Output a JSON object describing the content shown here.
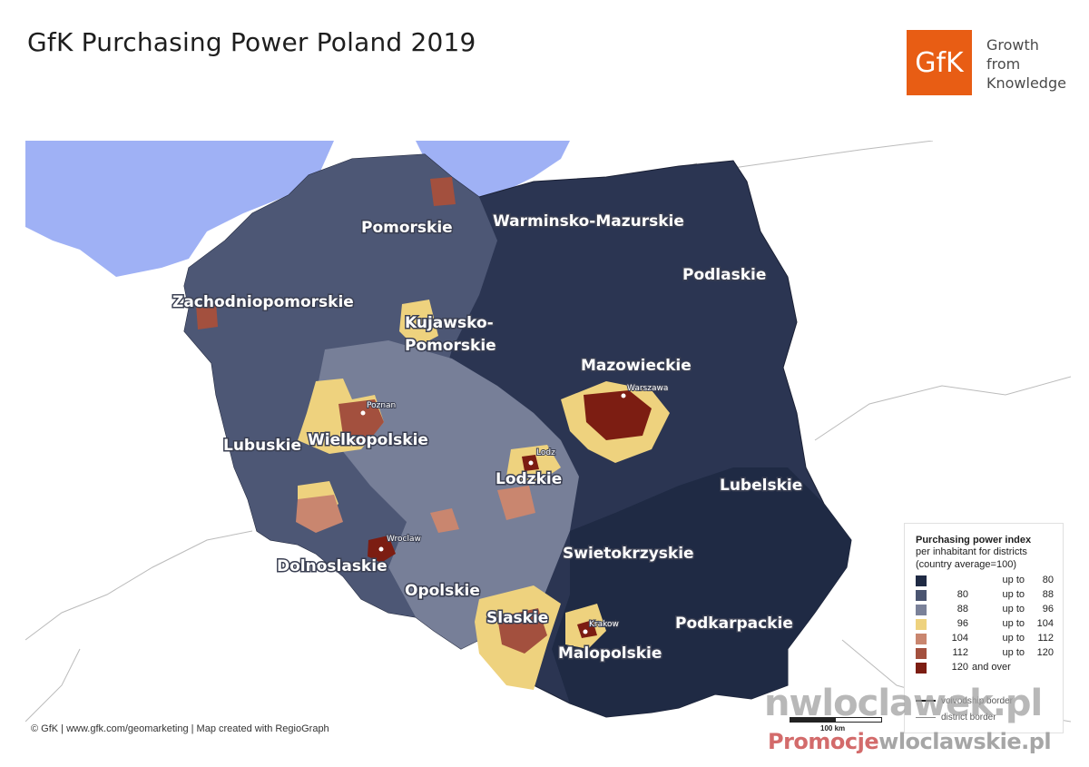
{
  "title": "GfK Purchasing Power Poland 2019",
  "logo": {
    "mark": "GfK",
    "tagline": [
      "Growth",
      "from",
      "Knowledge"
    ],
    "color": "#e85d14"
  },
  "regions": [
    "Pomorskie",
    "Warminsko-Mazurskie",
    "Podlaskie",
    "Zachodniopomorskie",
    "Kujawsko-",
    "Pomorskie",
    "Mazowieckie",
    "Lubuskie",
    "Wielkopolskie",
    "Lodzkie",
    "Lubelskie",
    "Swietokrzyskie",
    "Dolnoslaskie",
    "Opolskie",
    "Slaskie",
    "Podkarpackie",
    "Malopolskie"
  ],
  "cities": [
    "Poznan",
    "Warszawa",
    "Lodz",
    "Wroclaw",
    "Krakow"
  ],
  "legend": {
    "title": "Purchasing power index",
    "subtitle1": "per inhabitant for districts",
    "subtitle2": "(country average=100)",
    "rows": [
      {
        "from": "",
        "mid": "up to",
        "to": "80",
        "color": "#1f2a44"
      },
      {
        "from": "80",
        "mid": "up to",
        "to": "88",
        "color": "#4a5470"
      },
      {
        "from": "88",
        "mid": "up to",
        "to": "96",
        "color": "#7a8199"
      },
      {
        "from": "96",
        "mid": "up to",
        "to": "104",
        "color": "#eed27e"
      },
      {
        "from": "104",
        "mid": "up to",
        "to": "112",
        "color": "#c9866f"
      },
      {
        "from": "112",
        "mid": "up to",
        "to": "120",
        "color": "#a3503e"
      },
      {
        "from": "120",
        "mid": "and over",
        "to": "",
        "color": "#7c1d12"
      }
    ],
    "voivodship_border": "voivodship border",
    "district_border": "district border"
  },
  "scale_label": "100 km",
  "footer": "© GfK | www.gfk.com/geomarketing | Map created with RegioGraph",
  "watermark": {
    "line1": "nwloclawek.pl",
    "line2a": "Promocje",
    "line2b": "wloclawskie.pl"
  }
}
